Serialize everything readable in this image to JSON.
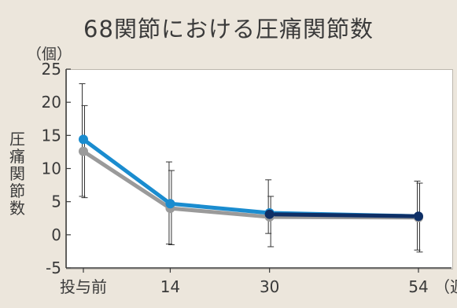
{
  "chart_data": {
    "type": "line",
    "title": "68関節における圧痛関節数",
    "ylabel": "圧痛関節数",
    "y_unit": "（個）",
    "x_unit": "（週）",
    "categories": [
      "投与前",
      "14",
      "30",
      "54"
    ],
    "x": [
      0,
      14,
      30,
      54
    ],
    "ylim": [
      -5,
      25
    ],
    "yticks": [
      -5,
      0,
      5,
      10,
      15,
      20,
      25
    ],
    "grid": false,
    "series": [
      {
        "color": "#1a8ccf",
        "values": [
          14.4,
          4.7,
          3.3,
          2.8
        ],
        "error_low": [
          5.8,
          -1.4,
          0.2,
          -2.3
        ],
        "error_high": [
          22.8,
          11.0,
          8.3,
          8.1
        ]
      },
      {
        "color": "#9a9a9a",
        "values": [
          12.6,
          4.0,
          2.7,
          2.6
        ],
        "error_low": [
          5.6,
          -1.5,
          -1.8,
          -2.6
        ],
        "error_high": [
          19.5,
          9.7,
          5.8,
          7.8
        ]
      },
      {
        "color": "#0e2f66",
        "segment_from_index": 2,
        "values": [
          null,
          null,
          3.1,
          2.8
        ]
      }
    ]
  }
}
